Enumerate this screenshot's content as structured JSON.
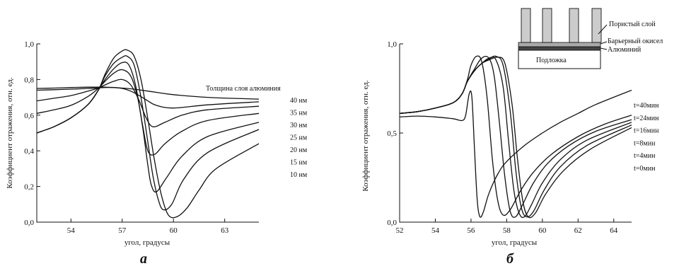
{
  "chart_data": [
    {
      "id": "a",
      "type": "line",
      "panel_label": "а",
      "xlabel": "угол, градусы",
      "ylabel": "Коэффициент отражения, отн. ед.",
      "xlim": [
        52,
        65
      ],
      "ylim": [
        0,
        1.0
      ],
      "xticks": [
        54,
        57,
        60,
        63
      ],
      "yticks": [
        0.0,
        0.2,
        0.4,
        0.6,
        0.8,
        1.0
      ],
      "xtick_labels": [
        "54",
        "57",
        "60",
        "63"
      ],
      "ytick_labels": [
        "0,0",
        "0,2",
        "0,4",
        "0,6",
        "0,8",
        "1,0"
      ],
      "legend_title": "Толщина слоя алюминия",
      "series": [
        {
          "name": "40 нм",
          "x": [
            52,
            53,
            54,
            55,
            55.6,
            56,
            56.5,
            57,
            57.5,
            58,
            59,
            60,
            62,
            65
          ],
          "y": [
            0.75,
            0.752,
            0.755,
            0.757,
            0.757,
            0.757,
            0.755,
            0.752,
            0.748,
            0.742,
            0.728,
            0.715,
            0.7,
            0.69
          ]
        },
        {
          "name": "35 нм",
          "x": [
            52,
            53,
            54,
            55,
            55.6,
            56,
            56.5,
            57,
            57.5,
            58,
            58.5,
            59,
            60,
            62,
            65
          ],
          "y": [
            0.74,
            0.743,
            0.746,
            0.75,
            0.753,
            0.755,
            0.755,
            0.75,
            0.735,
            0.71,
            0.68,
            0.655,
            0.64,
            0.658,
            0.675
          ]
        },
        {
          "name": "30 нм",
          "x": [
            52,
            53,
            54,
            55,
            55.6,
            56,
            56.5,
            57,
            57.5,
            58,
            58.4,
            58.8,
            59.5,
            60.5,
            62,
            65
          ],
          "y": [
            0.68,
            0.695,
            0.71,
            0.735,
            0.752,
            0.77,
            0.79,
            0.8,
            0.77,
            0.68,
            0.585,
            0.535,
            0.56,
            0.6,
            0.63,
            0.65
          ]
        },
        {
          "name": "25 нм",
          "x": [
            52,
            53,
            54,
            55,
            55.6,
            56,
            56.5,
            57,
            57.5,
            57.9,
            58.2,
            58.5,
            58.9,
            59.5,
            60.5,
            62,
            65
          ],
          "y": [
            0.61,
            0.63,
            0.655,
            0.705,
            0.75,
            0.79,
            0.835,
            0.855,
            0.82,
            0.7,
            0.54,
            0.4,
            0.38,
            0.44,
            0.51,
            0.57,
            0.61
          ]
        },
        {
          "name": "20 нм",
          "x": [
            52,
            53,
            54,
            55,
            55.6,
            56,
            56.5,
            57,
            57.4,
            57.8,
            58.2,
            58.5,
            58.7,
            59,
            59.6,
            60.5,
            62,
            65
          ],
          "y": [
            0.5,
            0.535,
            0.585,
            0.66,
            0.74,
            0.8,
            0.86,
            0.895,
            0.88,
            0.76,
            0.53,
            0.32,
            0.21,
            0.17,
            0.25,
            0.37,
            0.48,
            0.56
          ]
        },
        {
          "name": "15 нм",
          "x": [
            52,
            53,
            54,
            55,
            55.6,
            56,
            56.5,
            57,
            57.3,
            57.7,
            58.1,
            58.5,
            58.8,
            59.1,
            59.4,
            59.9,
            60.6,
            62,
            65
          ],
          "y": [
            0.5,
            0.535,
            0.585,
            0.66,
            0.74,
            0.82,
            0.89,
            0.925,
            0.93,
            0.88,
            0.7,
            0.45,
            0.26,
            0.13,
            0.07,
            0.1,
            0.24,
            0.39,
            0.52
          ]
        },
        {
          "name": "10 нм",
          "x": [
            52,
            53,
            54,
            55,
            55.6,
            56,
            56.5,
            57,
            57.3,
            57.7,
            58.1,
            58.5,
            58.9,
            59.3,
            59.7,
            60.2,
            60.8,
            61.5,
            62.5,
            65
          ],
          "y": [
            0.5,
            0.535,
            0.585,
            0.66,
            0.74,
            0.83,
            0.92,
            0.96,
            0.965,
            0.93,
            0.8,
            0.58,
            0.34,
            0.15,
            0.04,
            0.03,
            0.08,
            0.18,
            0.3,
            0.44
          ]
        }
      ]
    },
    {
      "id": "b",
      "type": "line",
      "panel_label": "б",
      "xlabel": "угол, градусы",
      "ylabel": "Коэффициент отражения, отн. ед.",
      "xlim": [
        52,
        65
      ],
      "ylim": [
        0,
        1.0
      ],
      "xticks": [
        52,
        54,
        56,
        58,
        60,
        62,
        64
      ],
      "yticks": [
        0.0,
        0.5,
        1.0
      ],
      "xtick_labels": [
        "52",
        "54",
        "56",
        "58",
        "60",
        "62",
        "64"
      ],
      "ytick_labels": [
        "0,0",
        "0,5",
        "1,0"
      ],
      "series": [
        {
          "name": "t=40мин",
          "x": [
            52,
            53,
            54,
            55,
            55.5,
            55.7,
            55.9,
            56.05,
            56.2,
            56.35,
            56.5,
            56.7,
            57,
            57.5,
            58,
            59,
            60,
            61,
            62,
            63,
            65
          ],
          "y": [
            0.59,
            0.595,
            0.59,
            0.58,
            0.57,
            0.6,
            0.72,
            0.7,
            0.4,
            0.12,
            0.03,
            0.06,
            0.16,
            0.27,
            0.34,
            0.43,
            0.5,
            0.56,
            0.61,
            0.66,
            0.74
          ]
        },
        {
          "name": "t=24мин",
          "x": [
            52,
            53,
            54,
            55,
            55.5,
            55.8,
            56,
            56.3,
            56.6,
            56.9,
            57.2,
            57.5,
            57.8,
            58.2,
            58.8,
            59.5,
            60.5,
            62,
            63.5,
            65
          ],
          "y": [
            0.61,
            0.62,
            0.64,
            0.67,
            0.72,
            0.8,
            0.88,
            0.93,
            0.9,
            0.7,
            0.35,
            0.12,
            0.04,
            0.07,
            0.18,
            0.28,
            0.38,
            0.48,
            0.55,
            0.6
          ]
        },
        {
          "name": "t=16мин",
          "x": [
            52,
            53,
            54,
            55,
            55.5,
            55.8,
            56.2,
            56.6,
            57,
            57.3,
            57.6,
            57.9,
            58.2,
            58.5,
            58.9,
            59.5,
            60.3,
            61.5,
            63,
            65
          ],
          "y": [
            0.61,
            0.62,
            0.64,
            0.67,
            0.72,
            0.79,
            0.86,
            0.92,
            0.92,
            0.82,
            0.55,
            0.25,
            0.06,
            0.03,
            0.1,
            0.22,
            0.33,
            0.43,
            0.51,
            0.575
          ]
        },
        {
          "name": "t=8мин",
          "x": [
            52,
            53,
            54,
            55,
            55.5,
            55.8,
            56.2,
            56.6,
            57,
            57.4,
            57.8,
            58.1,
            58.4,
            58.7,
            59,
            59.4,
            60,
            61,
            62.5,
            65
          ],
          "y": [
            0.61,
            0.62,
            0.64,
            0.67,
            0.72,
            0.79,
            0.85,
            0.89,
            0.92,
            0.91,
            0.76,
            0.46,
            0.18,
            0.05,
            0.03,
            0.1,
            0.22,
            0.35,
            0.46,
            0.56
          ]
        },
        {
          "name": "t=4мин",
          "x": [
            52,
            53,
            54,
            55,
            55.5,
            55.8,
            56.2,
            56.6,
            57,
            57.4,
            57.8,
            58.2,
            58.5,
            58.8,
            59.1,
            59.5,
            60.1,
            61,
            62.5,
            65
          ],
          "y": [
            0.61,
            0.62,
            0.64,
            0.67,
            0.72,
            0.79,
            0.85,
            0.89,
            0.915,
            0.93,
            0.88,
            0.62,
            0.3,
            0.09,
            0.03,
            0.06,
            0.18,
            0.31,
            0.43,
            0.545
          ]
        },
        {
          "name": "t=0мин",
          "x": [
            52,
            53,
            54,
            55,
            55.5,
            55.8,
            56.2,
            56.6,
            57,
            57.5,
            57.9,
            58.3,
            58.6,
            58.9,
            59.2,
            59.6,
            60.2,
            61.2,
            62.7,
            65
          ],
          "y": [
            0.61,
            0.62,
            0.64,
            0.67,
            0.72,
            0.79,
            0.85,
            0.89,
            0.91,
            0.925,
            0.89,
            0.66,
            0.36,
            0.12,
            0.03,
            0.05,
            0.16,
            0.29,
            0.41,
            0.53
          ]
        }
      ],
      "inset": {
        "labels": [
          "Пористый слой",
          "Барьерный окисел",
          "Алюминий",
          "Подложка"
        ]
      }
    }
  ]
}
